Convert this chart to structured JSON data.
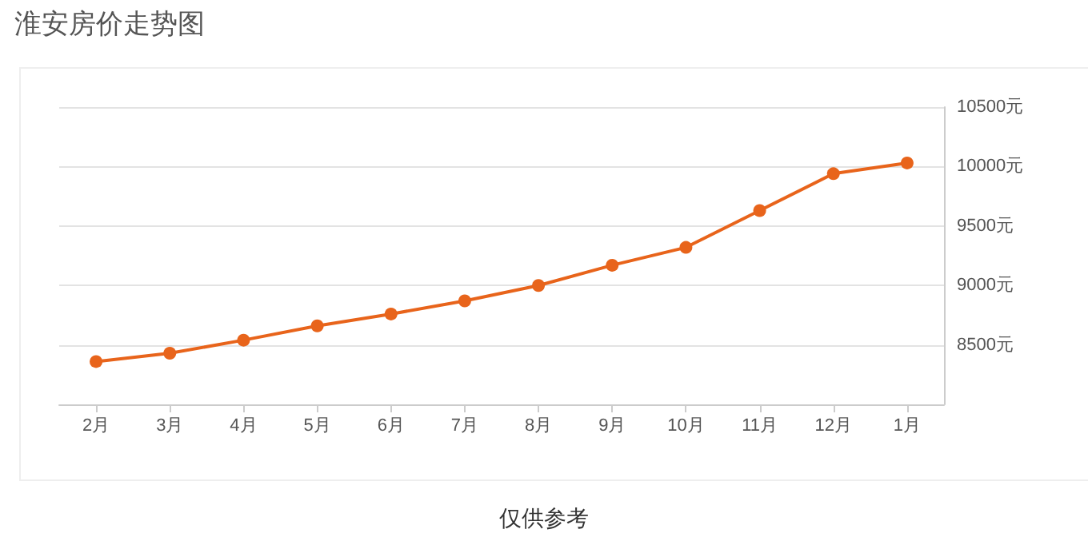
{
  "chart_data": {
    "type": "line",
    "title": "淮安房价走势图",
    "categories": [
      "2月",
      "3月",
      "4月",
      "5月",
      "6月",
      "7月",
      "8月",
      "9月",
      "10月",
      "11月",
      "12月",
      "1月"
    ],
    "series": [
      {
        "color": "#e8641b",
        "values": [
          8360,
          8430,
          8540,
          8660,
          8760,
          8870,
          9000,
          9170,
          9320,
          9630,
          9940,
          10030
        ]
      }
    ],
    "ylim": [
      8000,
      10500
    ],
    "yticks": [
      {
        "value": 8000,
        "label": null
      },
      {
        "value": 8500,
        "label": "8500元"
      },
      {
        "value": 9000,
        "label": "9000元"
      },
      {
        "value": 9500,
        "label": "9500元"
      },
      {
        "value": 10000,
        "label": "10000元"
      },
      {
        "value": 10500,
        "label": "10500元"
      }
    ],
    "grid": "y",
    "marker": "circle",
    "line_style": "solid",
    "annotations": [
      "仅供参考"
    ]
  }
}
